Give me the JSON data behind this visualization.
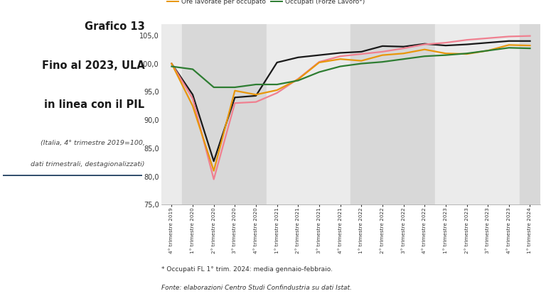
{
  "title_main": "Grafico 13\nFino al 2023, ULA\nin linea con il PIL",
  "title_sub": "(Italia, 4° trimestre 2019=100,\ndati trimestrali, destagionalizzati)",
  "footnote1": "* Occupati FL 1° trim. 2024: media gennaio-febbraio.",
  "footnote2": "Fonte: elaborazioni Centro Studi Confindustria su dati Istat.",
  "x_labels": [
    "4° trimestre 2019",
    "1° trimestre 2020",
    "2° trimestre 2020",
    "3° trimestre 2020",
    "4° trimestre 2020",
    "1° trimestre 2021",
    "2° trimestre 2021",
    "3° trimestre 2021",
    "4° trimestre 2021",
    "1° trimestre 2022",
    "2° trimestre 2022",
    "3° trimestre 2022",
    "4° trimestre 2022",
    "1° trimestre 2023",
    "2° trimestre 2023",
    "3° trimestre 2023",
    "4° trimestre 2023",
    "1° trimestre 2024"
  ],
  "PIL": [
    100.0,
    94.5,
    82.7,
    94.0,
    94.3,
    100.2,
    101.1,
    101.5,
    101.9,
    102.1,
    103.1,
    103.0,
    103.5,
    103.2,
    103.4,
    103.7,
    104.0,
    104.0
  ],
  "ULA": [
    100.0,
    93.8,
    79.5,
    93.0,
    93.2,
    94.8,
    97.3,
    100.3,
    101.3,
    101.7,
    102.1,
    102.7,
    103.4,
    103.7,
    104.2,
    104.5,
    104.8,
    104.9
  ],
  "Ore_lavorate": [
    100.0,
    92.5,
    81.0,
    95.2,
    94.5,
    95.3,
    97.2,
    100.2,
    100.8,
    100.5,
    101.5,
    101.8,
    102.5,
    101.8,
    101.7,
    102.3,
    103.3,
    103.2
  ],
  "Occupati": [
    99.5,
    99.0,
    95.8,
    95.8,
    96.3,
    96.3,
    97.0,
    98.5,
    99.5,
    100.0,
    100.3,
    100.8,
    101.3,
    101.5,
    101.8,
    102.3,
    102.8,
    102.7
  ],
  "PIL_color": "#1a1a1a",
  "ULA_color": "#f08090",
  "Ore_lavorate_color": "#e8960a",
  "Occupati_color": "#2e7d32",
  "ylim": [
    75.0,
    107.0
  ],
  "yticks": [
    75.0,
    80.0,
    85.0,
    90.0,
    95.0,
    100.0,
    105.0
  ],
  "bg_color": "#ffffff"
}
